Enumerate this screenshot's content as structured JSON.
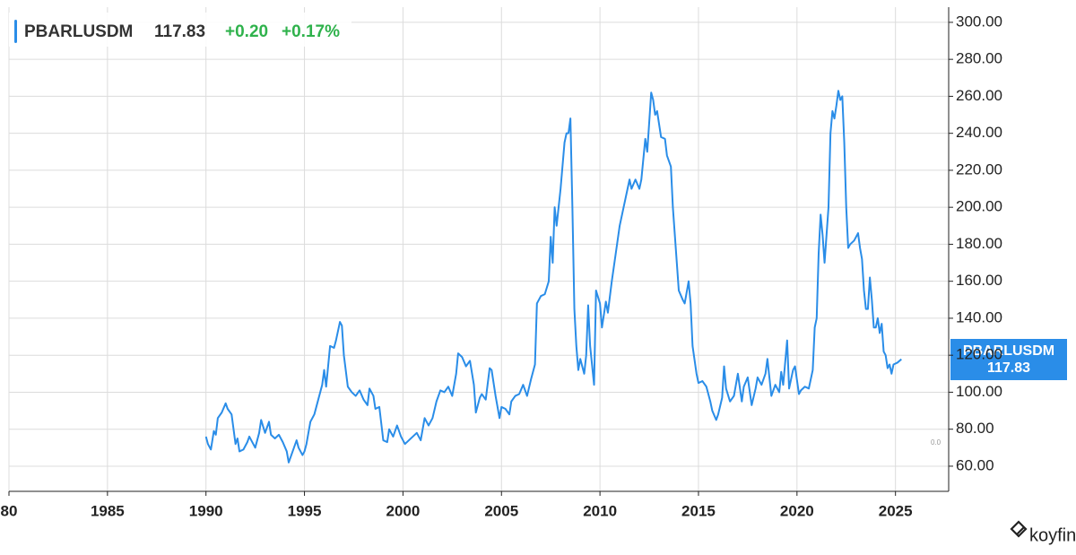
{
  "chart_data": {
    "type": "line",
    "symbol": "PBARLUSDM",
    "last": 117.83,
    "change": {
      "value": 0.2,
      "label": "+0.20"
    },
    "change_pct": {
      "value": 0.17,
      "label": "+0.17%"
    },
    "axis_note": "0.0",
    "brand": "koyfin",
    "xlim": [
      1980,
      2027.7
    ],
    "ylim": [
      46.4,
      308.2
    ],
    "grid": true,
    "xticks": [
      {
        "value": 1980,
        "label": "80"
      },
      1985,
      1990,
      1995,
      2000,
      2005,
      2010,
      2015,
      2020,
      2025
    ],
    "yticks": [
      {
        "value": 60,
        "label": "60.00"
      },
      {
        "value": 80,
        "label": "80.00"
      },
      {
        "value": 100,
        "label": "100.00"
      },
      {
        "value": 120,
        "label": "120.00"
      },
      {
        "value": 140,
        "label": "140.00"
      },
      {
        "value": 160,
        "label": "160.00"
      },
      {
        "value": 180,
        "label": "180.00"
      },
      {
        "value": 200,
        "label": "200.00"
      },
      {
        "value": 220,
        "label": "220.00"
      },
      {
        "value": 240,
        "label": "240.00"
      },
      {
        "value": 260,
        "label": "260.00"
      },
      {
        "value": 280,
        "label": "280.00"
      },
      {
        "value": 300,
        "label": "300.00"
      }
    ],
    "series": [
      {
        "name": "PBARLUSDM",
        "color": "#2a8de8",
        "x": [
          1990.0,
          1990.1,
          1990.25,
          1990.4,
          1990.5,
          1990.6,
          1990.8,
          1991.0,
          1991.1,
          1991.3,
          1991.5,
          1991.6,
          1991.7,
          1991.9,
          1992.1,
          1992.2,
          1992.4,
          1992.5,
          1992.7,
          1992.8,
          1993.0,
          1993.2,
          1993.3,
          1993.5,
          1993.7,
          1993.9,
          1994.1,
          1994.2,
          1994.4,
          1994.6,
          1994.7,
          1994.9,
          1995.0,
          1995.1,
          1995.3,
          1995.5,
          1995.7,
          1995.9,
          1996.0,
          1996.1,
          1996.3,
          1996.5,
          1996.6,
          1996.8,
          1996.9,
          1997.0,
          1997.2,
          1997.4,
          1997.6,
          1997.8,
          1998.0,
          1998.2,
          1998.3,
          1998.5,
          1998.6,
          1998.8,
          1999.0,
          1999.2,
          1999.3,
          1999.5,
          1999.7,
          1999.9,
          2000.1,
          2000.3,
          2000.5,
          2000.7,
          2000.9,
          2001.1,
          2001.3,
          2001.5,
          2001.7,
          2001.9,
          2002.1,
          2002.3,
          2002.5,
          2002.7,
          2002.8,
          2003.0,
          2003.2,
          2003.4,
          2003.6,
          2003.7,
          2003.9,
          2004.0,
          2004.2,
          2004.4,
          2004.5,
          2004.7,
          2004.9,
          2005.0,
          2005.2,
          2005.4,
          2005.5,
          2005.7,
          2005.9,
          2006.1,
          2006.3,
          2006.5,
          2006.7,
          2006.8,
          2007.0,
          2007.2,
          2007.4,
          2007.5,
          2007.6,
          2007.7,
          2007.8,
          2007.9,
          2008.0,
          2008.2,
          2008.3,
          2008.4,
          2008.5,
          2008.6,
          2008.7,
          2008.8,
          2008.9,
          2009.0,
          2009.2,
          2009.3,
          2009.4,
          2009.5,
          2009.7,
          2009.8,
          2010.0,
          2010.1,
          2010.3,
          2010.4,
          2010.6,
          2010.8,
          2011.0,
          2011.2,
          2011.3,
          2011.5,
          2011.6,
          2011.8,
          2012.0,
          2012.1,
          2012.3,
          2012.4,
          2012.6,
          2012.7,
          2012.8,
          2012.9,
          2013.1,
          2013.3,
          2013.4,
          2013.6,
          2013.7,
          2013.9,
          2014.0,
          2014.2,
          2014.3,
          2014.5,
          2014.6,
          2014.7,
          2014.9,
          2015.0,
          2015.2,
          2015.4,
          2015.6,
          2015.7,
          2015.9,
          2016.0,
          2016.2,
          2016.3,
          2016.4,
          2016.6,
          2016.8,
          2017.0,
          2017.2,
          2017.3,
          2017.5,
          2017.7,
          2017.9,
          2018.0,
          2018.2,
          2018.4,
          2018.5,
          2018.7,
          2018.9,
          2019.1,
          2019.2,
          2019.3,
          2019.5,
          2019.6,
          2019.8,
          2019.9,
          2020.1,
          2020.2,
          2020.4,
          2020.6,
          2020.8,
          2020.9,
          2021.0,
          2021.1,
          2021.2,
          2021.3,
          2021.4,
          2021.5,
          2021.6,
          2021.7,
          2021.8,
          2021.9,
          2022.0,
          2022.1,
          2022.2,
          2022.3,
          2022.4,
          2022.5,
          2022.6,
          2022.7,
          2022.9,
          2023.0,
          2023.1,
          2023.2,
          2023.3,
          2023.4,
          2023.5,
          2023.6,
          2023.7,
          2023.8,
          2023.9,
          2024.0,
          2024.1,
          2024.2,
          2024.3,
          2024.4,
          2024.5,
          2024.6,
          2024.7,
          2024.8,
          2024.9,
          2025.1,
          2025.3
        ],
        "values": [
          76,
          72,
          69,
          79,
          77,
          86,
          89,
          94,
          91,
          88,
          72,
          75,
          68,
          69,
          73,
          76,
          72,
          70,
          78,
          85,
          78,
          84,
          77,
          75,
          77,
          73,
          68,
          62,
          68,
          74,
          70,
          66,
          68,
          72,
          84,
          88,
          96,
          104,
          112,
          103,
          125,
          124,
          128,
          138,
          136,
          120,
          103,
          100,
          98,
          101,
          96,
          93,
          102,
          98,
          91,
          92,
          74,
          73,
          80,
          76,
          82,
          76,
          72,
          74,
          76,
          78,
          74,
          86,
          82,
          86,
          95,
          101,
          100,
          103,
          98,
          110,
          121,
          119,
          114,
          117,
          104,
          89,
          97,
          99,
          96,
          113,
          112,
          98,
          86,
          92,
          91,
          88,
          95,
          98,
          99,
          104,
          98,
          107,
          115,
          148,
          152,
          153,
          160,
          184,
          170,
          200,
          190,
          200,
          210,
          235,
          240,
          240,
          248,
          200,
          145,
          125,
          112,
          118,
          110,
          120,
          147,
          125,
          104,
          155,
          148,
          135,
          149,
          143,
          160,
          175,
          190,
          200,
          205,
          215,
          210,
          215,
          210,
          215,
          237,
          230,
          262,
          258,
          250,
          252,
          238,
          237,
          228,
          222,
          200,
          170,
          155,
          150,
          148,
          160,
          148,
          125,
          110,
          105,
          106,
          103,
          95,
          90,
          85,
          88,
          97,
          114,
          102,
          95,
          98,
          110,
          95,
          103,
          108,
          93,
          102,
          108,
          104,
          110,
          118,
          98,
          104,
          100,
          111,
          104,
          128,
          102,
          112,
          114,
          99,
          101,
          103,
          102,
          112,
          135,
          140,
          175,
          196,
          185,
          170,
          185,
          200,
          240,
          252,
          248,
          255,
          263,
          258,
          260,
          235,
          200,
          178,
          180,
          182,
          184,
          186,
          178,
          172,
          155,
          145,
          145,
          162,
          150,
          135,
          135,
          140,
          132,
          137,
          122,
          120,
          113,
          115,
          110,
          115,
          116,
          117.83
        ]
      }
    ]
  }
}
